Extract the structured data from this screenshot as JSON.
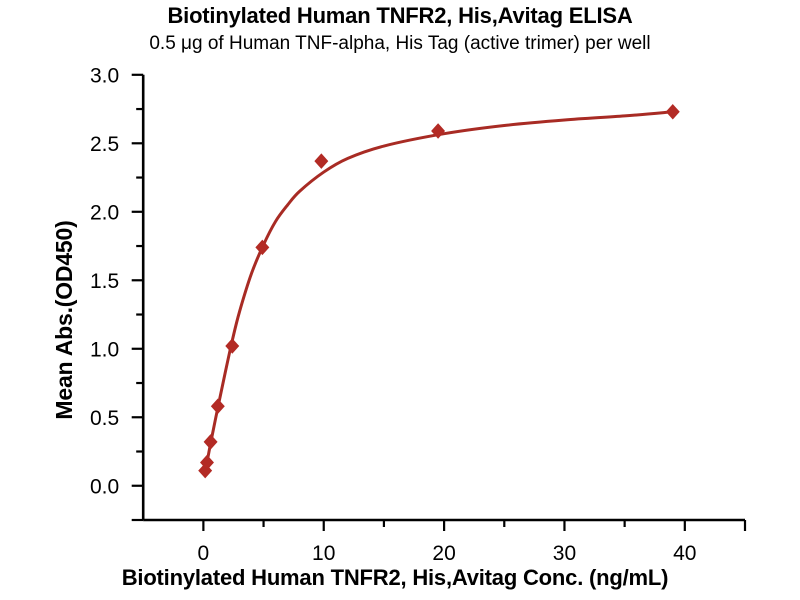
{
  "chart_data": {
    "type": "scatter",
    "title": "Biotinylated Human TNFR2, His,Avitag ELISA",
    "subtitle": "0.5 μg of Human TNF-alpha, His Tag (active trimer) per well",
    "xlabel": "Biotinylated Human TNFR2, His,Avitag Conc. (ng/mL)",
    "ylabel": "Mean Abs.(OD450)",
    "xlim": [
      -5,
      45
    ],
    "ylim": [
      -0.25,
      3.0
    ],
    "grid": false,
    "legend": "none",
    "x_ticks": {
      "values": [
        0,
        10,
        20,
        30,
        40
      ],
      "labels": [
        "0",
        "10",
        "20",
        "30",
        "40"
      ],
      "minor": [
        5,
        15,
        25,
        35
      ],
      "end": 45
    },
    "y_ticks": {
      "values": [
        0.0,
        0.5,
        1.0,
        1.5,
        2.0,
        2.5,
        3.0
      ],
      "labels": [
        "0.0",
        "0.5",
        "1.0",
        "1.5",
        "2.0",
        "2.5",
        "3.0"
      ],
      "minor": [
        0.25,
        0.75,
        1.25,
        1.75,
        2.25,
        2.75
      ],
      "end": -0.25
    },
    "series": [
      {
        "name": "Mean Abs.(OD450)",
        "marker": "diamond",
        "color": "#B32B25",
        "points": [
          [
            0.15,
            0.11
          ],
          [
            0.3,
            0.17
          ],
          [
            0.6,
            0.32
          ],
          [
            1.2,
            0.58
          ],
          [
            2.4,
            1.02
          ],
          [
            4.9,
            1.74
          ],
          [
            9.8,
            2.37
          ],
          [
            19.5,
            2.59
          ],
          [
            39,
            2.73
          ]
        ]
      }
    ],
    "fit_curve": {
      "name": "4PL fit curve",
      "color": "#A82B24",
      "points": [
        [
          0.15,
          0.11
        ],
        [
          0.3,
          0.17
        ],
        [
          0.6,
          0.31
        ],
        [
          1.2,
          0.57
        ],
        [
          1.8,
          0.82
        ],
        [
          2.4,
          1.06
        ],
        [
          3,
          1.27
        ],
        [
          4,
          1.55
        ],
        [
          5,
          1.76
        ],
        [
          6,
          1.93
        ],
        [
          7,
          2.05
        ],
        [
          8,
          2.15
        ],
        [
          10,
          2.29
        ],
        [
          12,
          2.39
        ],
        [
          15,
          2.48
        ],
        [
          20,
          2.57
        ],
        [
          25,
          2.63
        ],
        [
          30,
          2.67
        ],
        [
          35,
          2.7
        ],
        [
          39,
          2.73
        ]
      ]
    },
    "colors": {
      "axis": "#000000",
      "text": "#000000",
      "background": "#FFFFFF"
    }
  }
}
